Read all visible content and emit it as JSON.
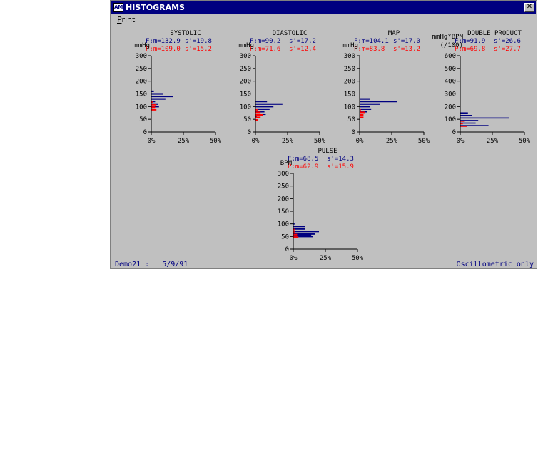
{
  "window": {
    "title": "HISTOGRAMS",
    "icon_glyph": "AM",
    "close_glyph": "✕"
  },
  "menu": {
    "print_first": "P",
    "print_rest": "rint"
  },
  "status": {
    "left": "Demo21 :   5/9/91",
    "right": "Oscillometric only"
  },
  "colors": {
    "window_bg": "#c0c0c0",
    "titlebar": "#000080",
    "series_F": "#000080",
    "series_P": "#ff0000",
    "axis": "#000000"
  },
  "chart_data": [
    {
      "type": "bar",
      "orientation": "horizontal",
      "title": "SYSTOLIC",
      "ylabel": "mmHg",
      "ylim": [
        0,
        300
      ],
      "yticks": [
        0,
        50,
        100,
        150,
        200,
        250,
        300
      ],
      "xlim": [
        0,
        50
      ],
      "xticks": [
        "0%",
        "25%",
        "50%"
      ],
      "stats": [
        {
          "m_label": "F:m=132.9",
          "s_label": "s'=19.8"
        },
        {
          "m_label": "P:m=109.0",
          "s_label": "s'=15.2"
        }
      ],
      "series": [
        {
          "name": "F",
          "bins": [
            [
              90,
              1
            ],
            [
              100,
              6
            ],
            [
              110,
              5
            ],
            [
              120,
              3
            ],
            [
              130,
              11
            ],
            [
              140,
              17
            ],
            [
              150,
              9
            ],
            [
              160,
              2
            ]
          ]
        },
        {
          "name": "P",
          "bins": [
            [
              90,
              4
            ],
            [
              100,
              3
            ],
            [
              110,
              4
            ],
            [
              120,
              1
            ]
          ]
        }
      ]
    },
    {
      "type": "bar",
      "orientation": "horizontal",
      "title": "DIASTOLIC",
      "ylabel": "mmHg",
      "ylim": [
        0,
        300
      ],
      "yticks": [
        0,
        50,
        100,
        150,
        200,
        250,
        300
      ],
      "xlim": [
        0,
        50
      ],
      "xticks": [
        "0%",
        "25%",
        "50%"
      ],
      "stats": [
        {
          "m_label": "F:m=90.2",
          "s_label": "s'=17.2"
        },
        {
          "m_label": "P:m=71.6",
          "s_label": "s'=12.4"
        }
      ],
      "series": [
        {
          "name": "F",
          "bins": [
            [
              60,
              1
            ],
            [
              70,
              8
            ],
            [
              80,
              7
            ],
            [
              90,
              11
            ],
            [
              100,
              14
            ],
            [
              110,
              21
            ],
            [
              120,
              9
            ]
          ]
        },
        {
          "name": "P",
          "bins": [
            [
              50,
              2
            ],
            [
              60,
              4
            ],
            [
              70,
              6
            ],
            [
              80,
              4
            ],
            [
              90,
              2
            ]
          ]
        }
      ]
    },
    {
      "type": "bar",
      "orientation": "horizontal",
      "title": "MAP",
      "ylabel": "mmHg",
      "ylim": [
        0,
        300
      ],
      "yticks": [
        0,
        50,
        100,
        150,
        200,
        250,
        300
      ],
      "xlim": [
        0,
        50
      ],
      "xticks": [
        "0%",
        "25%",
        "50%"
      ],
      "stats": [
        {
          "m_label": "F:m=104.1",
          "s_label": "s'=17.0"
        },
        {
          "m_label": "P:m=83.8",
          "s_label": "s'=13.2"
        }
      ],
      "series": [
        {
          "name": "F",
          "bins": [
            [
              70,
              2
            ],
            [
              80,
              6
            ],
            [
              90,
              9
            ],
            [
              100,
              8
            ],
            [
              110,
              16
            ],
            [
              120,
              29
            ],
            [
              130,
              8
            ]
          ]
        },
        {
          "name": "P",
          "bins": [
            [
              60,
              3
            ],
            [
              70,
              3
            ],
            [
              80,
              4
            ],
            [
              90,
              1
            ]
          ]
        }
      ]
    },
    {
      "type": "bar",
      "orientation": "horizontal",
      "title": "DOUBLE PRODUCT",
      "ylabel": "mmHg*BPM\n(/100)",
      "ylim": [
        0,
        600
      ],
      "yticks": [
        0,
        100,
        200,
        300,
        400,
        500,
        600
      ],
      "xlim": [
        0,
        50
      ],
      "xticks": [
        "0%",
        "25%",
        "50%"
      ],
      "stats": [
        {
          "m_label": "F:m=91.9",
          "s_label": "s'=26.6"
        },
        {
          "m_label": "P:m=69.8",
          "s_label": "s'=27.7"
        }
      ],
      "series": [
        {
          "name": "F",
          "bins": [
            [
              50,
              22
            ],
            [
              70,
              12
            ],
            [
              90,
              14
            ],
            [
              110,
              38
            ],
            [
              130,
              9
            ],
            [
              150,
              6
            ]
          ]
        },
        {
          "name": "P",
          "bins": [
            [
              50,
              5
            ],
            [
              70,
              2
            ],
            [
              90,
              3
            ]
          ]
        }
      ]
    },
    {
      "type": "bar",
      "orientation": "horizontal",
      "title": "PULSE",
      "ylabel": "BPM",
      "ylim": [
        0,
        300
      ],
      "yticks": [
        0,
        50,
        100,
        150,
        200,
        250,
        300
      ],
      "xlim": [
        0,
        50
      ],
      "xticks": [
        "0%",
        "25%",
        "50%"
      ],
      "stats": [
        {
          "m_label": "F:m=68.5",
          "s_label": "s'=14.3"
        },
        {
          "m_label": "P:m=62.9",
          "s_label": "s'=15.9"
        }
      ],
      "series": [
        {
          "name": "F",
          "bins": [
            [
              50,
              15
            ],
            [
              55,
              14
            ],
            [
              60,
              17
            ],
            [
              70,
              20
            ],
            [
              80,
              9
            ],
            [
              90,
              9
            ],
            [
              100,
              1
            ]
          ]
        },
        {
          "name": "P",
          "bins": [
            [
              50,
              4
            ],
            [
              60,
              3
            ],
            [
              70,
              1
            ],
            [
              80,
              1
            ]
          ]
        }
      ]
    }
  ]
}
